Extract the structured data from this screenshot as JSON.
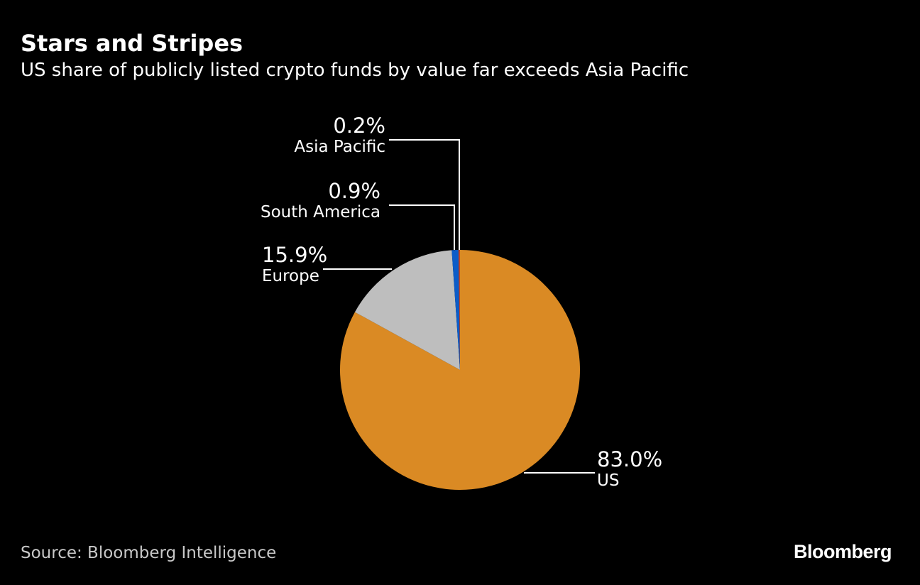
{
  "title": "Stars and Stripes",
  "subtitle": "US share of publicly listed crypto funds by value far exceeds Asia Pacific",
  "source": "Source: Bloomberg Intelligence",
  "logo": "Bloomberg",
  "chart_data": {
    "type": "pie",
    "title": "Stars and Stripes",
    "subtitle": "US share of publicly listed crypto funds by value far exceeds Asia Pacific",
    "start": "12 o'clock, clockwise",
    "slices": [
      {
        "label": "US",
        "value": 83.0,
        "text": "83.0%",
        "color": "#DA8A24"
      },
      {
        "label": "Europe",
        "value": 15.9,
        "text": "15.9%",
        "color": "#BEBEBE"
      },
      {
        "label": "South America",
        "value": 0.9,
        "text": "0.9%",
        "color": "#0C5CC8"
      },
      {
        "label": "Asia Pacific",
        "value": 0.2,
        "text": "0.2%",
        "color": "#C8461E"
      }
    ]
  }
}
